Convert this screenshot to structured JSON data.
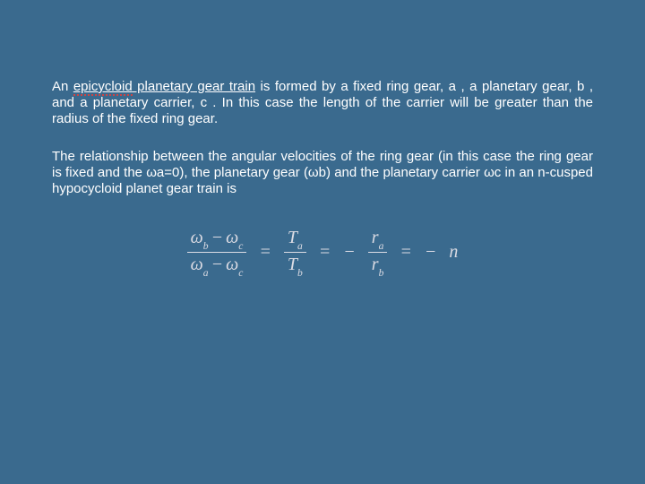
{
  "slide": {
    "background_color": "#3a6a8e",
    "text_color": "#ffffff",
    "formula_color": "#dcdce4",
    "para1": {
      "lead_phrase": "An ",
      "underlined_seg1": "epicycloid",
      "underlined_seg2": " planetary gear train",
      "rest": " is formed by a fixed ring gear, a , a planetary gear, b , and a planetary carrier, c . In this case the length of the carrier will be greater than the radius of the fixed ring gear."
    },
    "para2": " The relationship between the angular velocities of the ring gear (in this case the ring gear is fixed and the ωa=0), the planetary gear (ωb) and the planetary carrier ωc in an n-cusped hypocycloid planet gear train is",
    "formula": {
      "frac1_num_left": "ω",
      "frac1_num_left_sub": "b",
      "frac1_num_right": "ω",
      "frac1_num_right_sub": "c",
      "frac1_den_left": "ω",
      "frac1_den_left_sub": "a",
      "frac1_den_right": "ω",
      "frac1_den_right_sub": "c",
      "eq1": "=",
      "frac2_num": "T",
      "frac2_num_sub": "a",
      "frac2_den": "T",
      "frac2_den_sub": "b",
      "eq2": "=",
      "neg1": "−",
      "frac3_num": "r",
      "frac3_num_sub": "a",
      "frac3_den": "r",
      "frac3_den_sub": "b",
      "eq3": "=",
      "neg2": "−",
      "n": "n"
    }
  }
}
